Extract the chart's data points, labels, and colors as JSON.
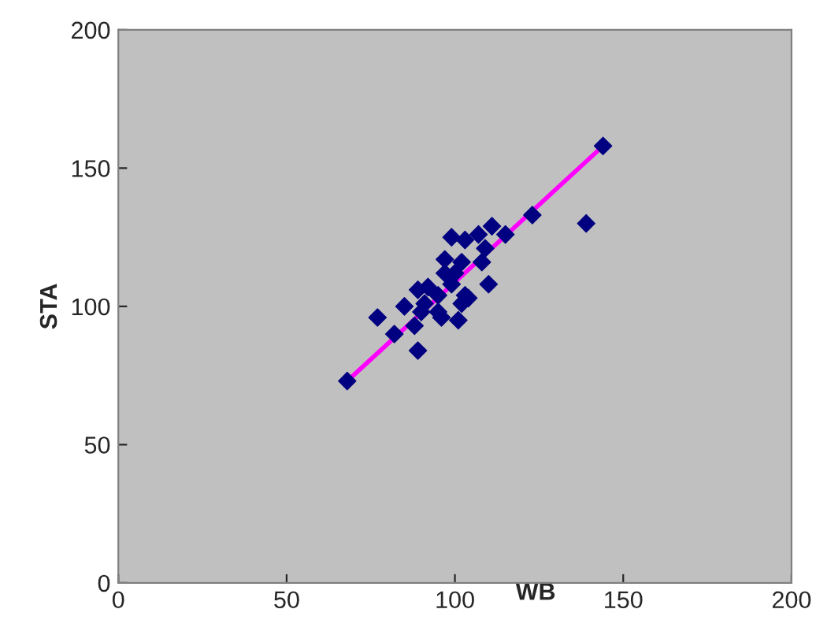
{
  "chart_data": {
    "type": "scatter",
    "xlabel": "WB",
    "ylabel": "STA",
    "xlim": [
      0,
      200
    ],
    "ylim": [
      0,
      200
    ],
    "xticks": [
      0,
      50,
      100,
      150,
      200
    ],
    "yticks": [
      0,
      50,
      100,
      150,
      200
    ],
    "grid": false,
    "series": [
      {
        "marker": "diamond",
        "color": "#000080",
        "x": [
          68,
          144,
          139,
          123,
          77,
          82,
          89,
          85,
          88,
          90,
          89,
          92,
          95,
          95,
          96,
          101,
          103,
          104,
          102,
          97,
          99,
          103,
          102,
          100,
          99,
          107,
          111,
          115,
          109,
          108,
          110,
          91,
          97
        ],
        "values": [
          73,
          158,
          130,
          133,
          96,
          90,
          84,
          100,
          93,
          98,
          106,
          107,
          104,
          98,
          96,
          95,
          104,
          103,
          101,
          117,
          125,
          124,
          116,
          112,
          108,
          126,
          129,
          126,
          121,
          116,
          108,
          101,
          112
        ]
      },
      {
        "type": "line",
        "marker": "none",
        "color": "#ff00ff",
        "x": [
          68,
          144
        ],
        "values": [
          73,
          158
        ]
      }
    ]
  }
}
